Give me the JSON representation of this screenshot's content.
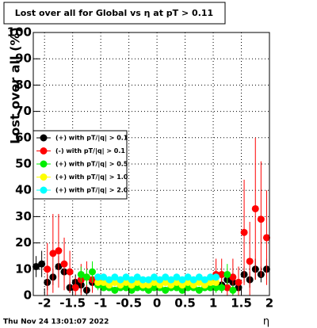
{
  "chart_data": {
    "type": "scatter",
    "title": "Lost over all for Global vs  η at pT > 0.11",
    "y_label": "Lost over all (%)",
    "x_label": "η",
    "timestamp": "Thu Nov 24 13:01:07 2022",
    "xlim": [
      -2.2,
      2
    ],
    "ylim": [
      0,
      100
    ],
    "xticks": [
      -2,
      -1.5,
      -1,
      -0.5,
      0,
      0.5,
      1,
      1.5,
      2
    ],
    "yticks": [
      0,
      10,
      20,
      30,
      40,
      50,
      60,
      70,
      80,
      90,
      100
    ],
    "grid": true,
    "legend_position": "left",
    "x": [
      -2.15,
      -2.05,
      -1.95,
      -1.85,
      -1.75,
      -1.65,
      -1.55,
      -1.45,
      -1.35,
      -1.25,
      -1.15,
      -1.05,
      -0.95,
      -0.85,
      -0.75,
      -0.65,
      -0.55,
      -0.45,
      -0.35,
      -0.25,
      -0.15,
      -0.05,
      0.05,
      0.15,
      0.25,
      0.35,
      0.45,
      0.55,
      0.65,
      0.75,
      0.85,
      0.95,
      1.05,
      1.15,
      1.25,
      1.35,
      1.45,
      1.55,
      1.65,
      1.75,
      1.85,
      1.95
    ],
    "series": [
      {
        "name": "(+) with pT/|q| > 0.1",
        "color": "#000000",
        "values": [
          11,
          12,
          5,
          7,
          11,
          9,
          3,
          5,
          4,
          2,
          5,
          null,
          null,
          null,
          null,
          null,
          null,
          null,
          null,
          null,
          null,
          null,
          null,
          null,
          null,
          null,
          null,
          null,
          null,
          null,
          null,
          null,
          null,
          4,
          6,
          5,
          3,
          8,
          6,
          10,
          8,
          10
        ],
        "errors": [
          4,
          5,
          3,
          3,
          4,
          4,
          2,
          3,
          3,
          2,
          3,
          null,
          null,
          null,
          null,
          null,
          null,
          null,
          null,
          null,
          null,
          null,
          null,
          null,
          null,
          null,
          null,
          null,
          null,
          null,
          null,
          null,
          null,
          3,
          3,
          3,
          2,
          3,
          3,
          4,
          3,
          4
        ]
      },
      {
        "name": "(-) with pT/|q| > 0.1",
        "color": "#ff0000",
        "values": [
          null,
          null,
          10,
          16,
          17,
          12,
          9,
          3,
          6,
          7,
          6,
          null,
          null,
          null,
          null,
          null,
          null,
          null,
          null,
          null,
          null,
          null,
          null,
          null,
          null,
          null,
          null,
          null,
          null,
          null,
          null,
          null,
          8,
          8,
          3,
          7,
          5,
          24,
          13,
          33,
          29,
          22
        ],
        "errors": [
          null,
          null,
          10,
          15,
          14,
          10,
          8,
          4,
          6,
          6,
          5,
          null,
          null,
          null,
          null,
          null,
          null,
          null,
          null,
          null,
          null,
          null,
          null,
          null,
          null,
          null,
          null,
          null,
          null,
          null,
          null,
          null,
          6,
          6,
          4,
          7,
          6,
          20,
          15,
          27,
          22,
          18
        ]
      },
      {
        "name": "(+) with pT/|q| > 0.5",
        "color": "#00ee00",
        "values": [
          null,
          null,
          null,
          null,
          null,
          null,
          null,
          null,
          8,
          7,
          9,
          4,
          3,
          3,
          2,
          3,
          3,
          2,
          3,
          3,
          2,
          3,
          3,
          2,
          3,
          3,
          2,
          3,
          3,
          2,
          3,
          3,
          3,
          3,
          8,
          2,
          null,
          null,
          null,
          null,
          null,
          null
        ],
        "errors": [
          null,
          null,
          null,
          null,
          null,
          null,
          null,
          null,
          3,
          3,
          4,
          2,
          1,
          1,
          1,
          1,
          1,
          1,
          1,
          1,
          1,
          1,
          1,
          1,
          1,
          1,
          1,
          1,
          1,
          1,
          1,
          1,
          2,
          2,
          4,
          2,
          null,
          null,
          null,
          null,
          null,
          null
        ]
      },
      {
        "name": "(+) with pT/|q| > 1.0",
        "color": "#ffff00",
        "values": [
          null,
          null,
          null,
          null,
          null,
          null,
          null,
          null,
          null,
          null,
          null,
          5,
          5,
          4,
          5,
          4,
          5,
          4,
          5,
          4,
          4,
          5,
          4,
          5,
          4,
          5,
          4,
          5,
          4,
          5,
          4,
          5,
          5,
          null,
          null,
          null,
          null,
          null,
          null,
          null,
          null,
          null
        ],
        "errors": [
          null,
          null,
          null,
          null,
          null,
          null,
          null,
          null,
          null,
          null,
          null,
          1,
          1,
          1,
          1,
          1,
          1,
          1,
          1,
          1,
          1,
          1,
          1,
          1,
          1,
          1,
          1,
          1,
          1,
          1,
          1,
          1,
          1,
          null,
          null,
          null,
          null,
          null,
          null,
          null,
          null,
          null
        ]
      },
      {
        "name": "(+) with pT/|q| > 2.0",
        "color": "#00ffff",
        "values": [
          null,
          null,
          null,
          null,
          null,
          null,
          null,
          null,
          null,
          null,
          null,
          7,
          7,
          6,
          7,
          6,
          7,
          6,
          7,
          6,
          6,
          7,
          6,
          7,
          6,
          7,
          6,
          7,
          6,
          7,
          6,
          7,
          7,
          null,
          null,
          null,
          null,
          null,
          null,
          null,
          null,
          null
        ],
        "errors": [
          null,
          null,
          null,
          null,
          null,
          null,
          null,
          null,
          null,
          null,
          null,
          1,
          1,
          1,
          1,
          1,
          1,
          1,
          1,
          1,
          1,
          1,
          1,
          1,
          1,
          1,
          1,
          1,
          1,
          1,
          1,
          1,
          1,
          null,
          null,
          null,
          null,
          null,
          null,
          null,
          null,
          null
        ]
      }
    ]
  }
}
